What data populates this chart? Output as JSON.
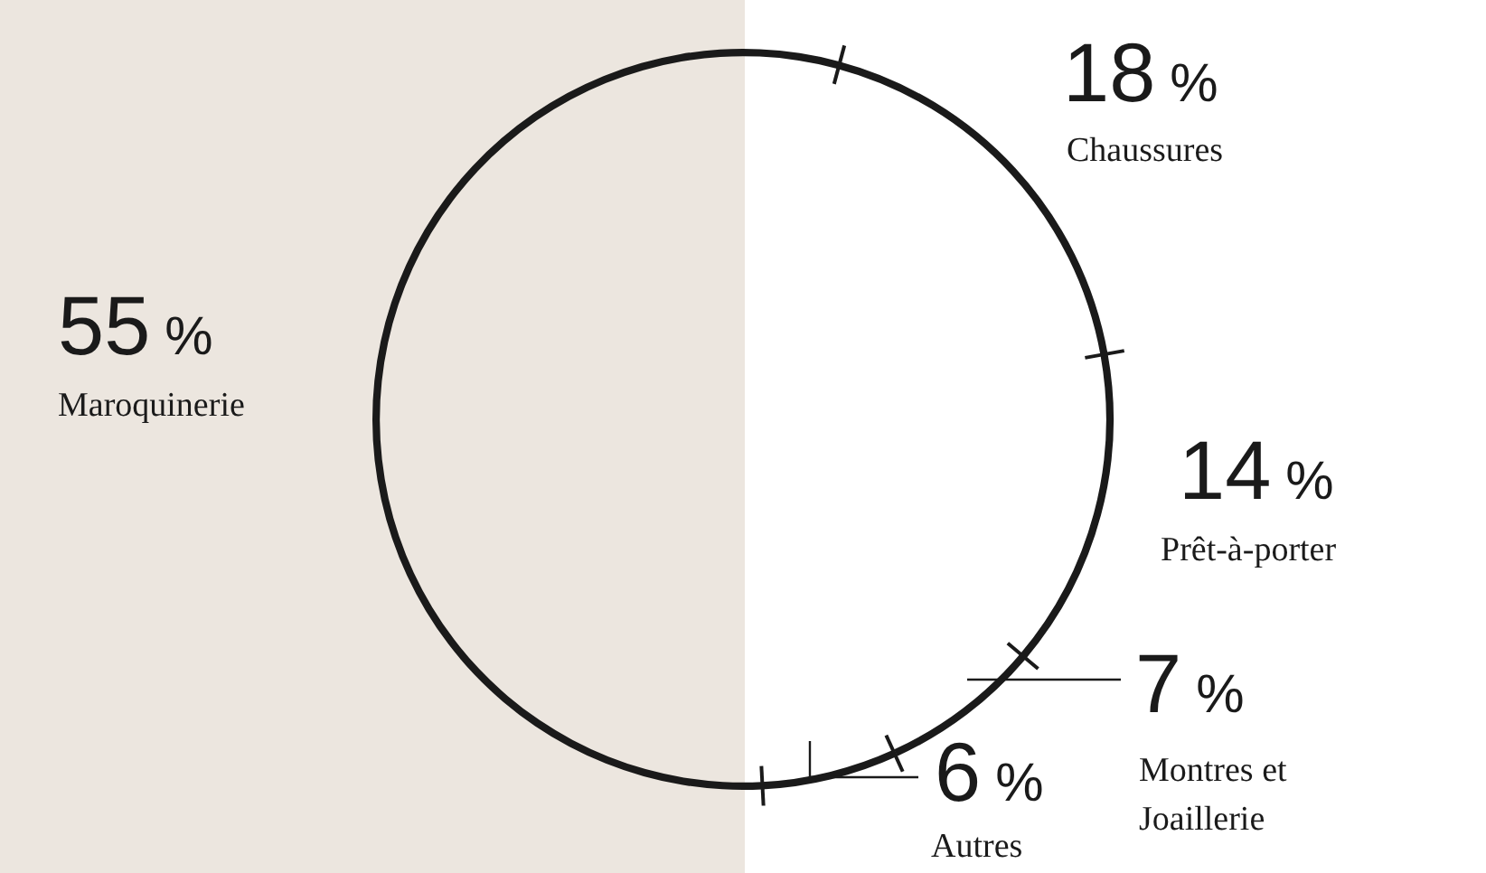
{
  "chart_data": {
    "type": "donut",
    "categories": [
      "Chaussures",
      "Prêt-à-porter",
      "Montres et Joaillerie",
      "Autres",
      "Maroquinerie"
    ],
    "values": [
      18,
      14,
      7,
      6,
      55
    ],
    "colors": [
      "#1a1a1a",
      "#1a1a1a",
      "#1a1a1a",
      "#1a1a1a",
      "#1a1a1a"
    ],
    "value_labels": [
      "18 %",
      "14 %",
      "7 %",
      "6 %",
      "55 %"
    ],
    "legend": false
  }
}
